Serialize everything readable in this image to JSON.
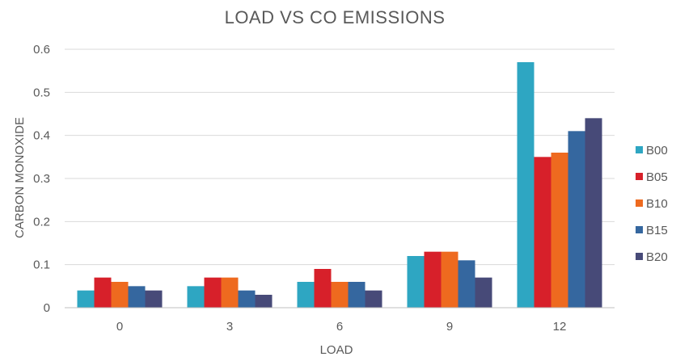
{
  "chart_data": {
    "type": "bar",
    "title": "LOAD VS CO EMISSIONS",
    "xlabel": "LOAD",
    "ylabel": "CARBON MONOXIDE",
    "categories": [
      "0",
      "3",
      "6",
      "9",
      "12"
    ],
    "ylim": [
      0,
      0.6
    ],
    "yticks": [
      {
        "value": 0,
        "label": "0"
      },
      {
        "value": 0.1,
        "label": "0.1"
      },
      {
        "value": 0.2,
        "label": "0.2"
      },
      {
        "value": 0.3,
        "label": "0.3"
      },
      {
        "value": 0.4,
        "label": "0.4"
      },
      {
        "value": 0.5,
        "label": "0.5"
      },
      {
        "value": 0.6,
        "label": "0.6"
      }
    ],
    "grid": true,
    "legend_position": "right",
    "series": [
      {
        "name": "B00",
        "color": "#2ea6c2",
        "values": [
          0.04,
          0.05,
          0.06,
          0.12,
          0.57
        ]
      },
      {
        "name": "B05",
        "color": "#d7202a",
        "values": [
          0.07,
          0.07,
          0.09,
          0.13,
          0.35
        ]
      },
      {
        "name": "B10",
        "color": "#ee6a1f",
        "values": [
          0.06,
          0.07,
          0.06,
          0.13,
          0.36
        ]
      },
      {
        "name": "B15",
        "color": "#35679f",
        "values": [
          0.05,
          0.04,
          0.06,
          0.11,
          0.41
        ]
      },
      {
        "name": "B20",
        "color": "#474a78",
        "values": [
          0.04,
          0.03,
          0.04,
          0.07,
          0.44
        ]
      }
    ]
  }
}
